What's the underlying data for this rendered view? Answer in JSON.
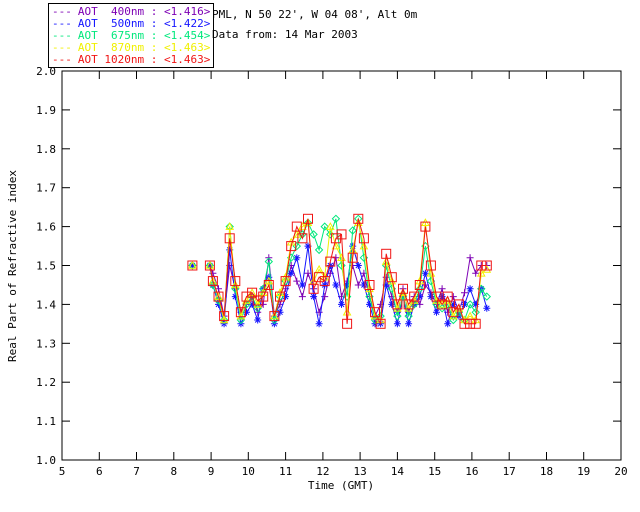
{
  "header": {
    "line1": "PML, N 50 22', W 04 08', Alt 0m",
    "line2": "Data from: 14 Mar 2003"
  },
  "legend": {
    "dash": "---"
  },
  "chart_data": {
    "type": "line",
    "title": "",
    "xlabel": "Time (GMT)",
    "ylabel": "Real Part of Refractive index",
    "xlim": [
      5,
      20
    ],
    "ylim": [
      1.0,
      2.0
    ],
    "xtick_step": 1,
    "ytick_step": 0.1,
    "grid": false,
    "legend_position": "top-left",
    "gap_threshold": 0.3,
    "x": [
      8.5,
      8.97,
      9.05,
      9.2,
      9.35,
      9.5,
      9.65,
      9.8,
      9.95,
      10.1,
      10.25,
      10.4,
      10.55,
      10.7,
      10.85,
      11.0,
      11.15,
      11.3,
      11.45,
      11.6,
      11.75,
      11.9,
      12.05,
      12.2,
      12.35,
      12.5,
      12.65,
      12.8,
      12.95,
      13.1,
      13.25,
      13.4,
      13.55,
      13.7,
      13.85,
      14.0,
      14.15,
      14.3,
      14.45,
      14.6,
      14.75,
      14.9,
      15.05,
      15.2,
      15.35,
      15.5,
      15.65,
      15.8,
      15.95,
      16.1,
      16.25,
      16.4
    ],
    "series": [
      {
        "label": "AOT  400nm : <1.416>",
        "wavelength_nm": 400,
        "mean_value": 1.416,
        "color": "#7D00B4",
        "marker": "plus",
        "values": [
          1.5,
          1.5,
          1.48,
          1.44,
          1.37,
          1.5,
          1.44,
          1.38,
          1.4,
          1.42,
          1.38,
          1.4,
          1.52,
          1.37,
          1.4,
          1.44,
          1.5,
          1.46,
          1.42,
          1.48,
          1.44,
          1.38,
          1.42,
          1.48,
          1.52,
          1.42,
          1.46,
          1.5,
          1.45,
          1.48,
          1.42,
          1.37,
          1.4,
          1.47,
          1.42,
          1.38,
          1.44,
          1.38,
          1.42,
          1.4,
          1.45,
          1.43,
          1.4,
          1.44,
          1.38,
          1.42,
          1.38,
          1.43,
          1.52,
          1.48,
          1.5,
          1.5
        ]
      },
      {
        "label": "AOT  500nm : <1.422>",
        "wavelength_nm": 500,
        "mean_value": 1.422,
        "color": "#1414FF",
        "marker": "asterisk",
        "values": [
          1.5,
          1.5,
          1.45,
          1.4,
          1.35,
          1.54,
          1.42,
          1.35,
          1.38,
          1.4,
          1.36,
          1.44,
          1.47,
          1.35,
          1.38,
          1.42,
          1.48,
          1.52,
          1.45,
          1.55,
          1.42,
          1.35,
          1.45,
          1.5,
          1.45,
          1.4,
          1.45,
          1.55,
          1.5,
          1.45,
          1.4,
          1.35,
          1.35,
          1.45,
          1.4,
          1.35,
          1.42,
          1.35,
          1.4,
          1.42,
          1.48,
          1.42,
          1.38,
          1.42,
          1.35,
          1.4,
          1.37,
          1.4,
          1.44,
          1.4,
          1.44,
          1.39
        ]
      },
      {
        "label": "AOT  675nm : <1.454>",
        "wavelength_nm": 675,
        "mean_value": 1.454,
        "color": "#00E87C",
        "marker": "diamond",
        "values": [
          1.5,
          1.5,
          1.45,
          1.41,
          1.36,
          1.6,
          1.44,
          1.36,
          1.4,
          1.42,
          1.39,
          1.44,
          1.51,
          1.36,
          1.42,
          1.46,
          1.52,
          1.55,
          1.58,
          1.61,
          1.58,
          1.54,
          1.6,
          1.58,
          1.62,
          1.5,
          1.42,
          1.59,
          1.62,
          1.52,
          1.42,
          1.36,
          1.37,
          1.5,
          1.44,
          1.37,
          1.42,
          1.37,
          1.4,
          1.44,
          1.55,
          1.46,
          1.4,
          1.39,
          1.4,
          1.36,
          1.38,
          1.36,
          1.4,
          1.38,
          1.44,
          1.42
        ]
      },
      {
        "label": "AOT  870nm : <1.463>",
        "wavelength_nm": 870,
        "mean_value": 1.463,
        "color": "#F0F000",
        "marker": "triangle",
        "values": [
          1.5,
          1.5,
          1.46,
          1.42,
          1.36,
          1.6,
          1.45,
          1.37,
          1.41,
          1.43,
          1.4,
          1.43,
          1.46,
          1.37,
          1.43,
          1.47,
          1.56,
          1.58,
          1.6,
          1.61,
          1.46,
          1.49,
          1.47,
          1.6,
          1.55,
          1.52,
          1.38,
          1.54,
          1.61,
          1.55,
          1.44,
          1.37,
          1.36,
          1.51,
          1.46,
          1.39,
          1.43,
          1.39,
          1.41,
          1.46,
          1.61,
          1.48,
          1.41,
          1.4,
          1.41,
          1.37,
          1.39,
          1.36,
          1.37,
          1.36,
          1.48,
          1.49
        ]
      },
      {
        "label": "AOT 1020nm : <1.463>",
        "wavelength_nm": 1020,
        "mean_value": 1.463,
        "color": "#F01414",
        "marker": "square",
        "values": [
          1.5,
          1.5,
          1.46,
          1.42,
          1.37,
          1.57,
          1.46,
          1.38,
          1.42,
          1.43,
          1.41,
          1.42,
          1.45,
          1.37,
          1.42,
          1.46,
          1.55,
          1.6,
          1.57,
          1.62,
          1.44,
          1.47,
          1.46,
          1.51,
          1.57,
          1.58,
          1.35,
          1.52,
          1.62,
          1.57,
          1.45,
          1.38,
          1.35,
          1.53,
          1.47,
          1.4,
          1.44,
          1.4,
          1.42,
          1.45,
          1.6,
          1.5,
          1.42,
          1.4,
          1.42,
          1.38,
          1.4,
          1.35,
          1.35,
          1.35,
          1.5,
          1.5
        ]
      }
    ]
  }
}
